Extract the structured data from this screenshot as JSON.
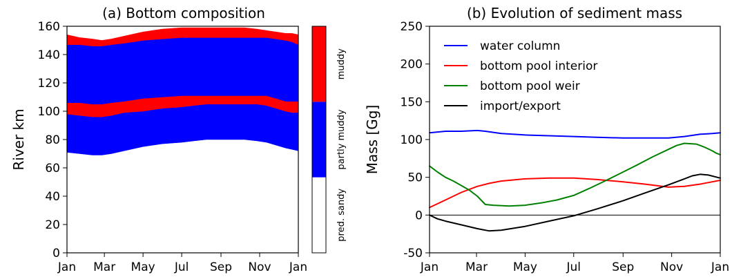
{
  "chart_data": [
    {
      "type": "area",
      "title": "(a) Bottom composition",
      "xlabel": "",
      "ylabel": "River km",
      "xlim": [
        0,
        365
      ],
      "ylim": [
        0,
        160
      ],
      "yticks": [
        0,
        20,
        40,
        60,
        80,
        100,
        120,
        140,
        160
      ],
      "xtick_labels": [
        {
          "label": "Jan",
          "x": 0
        },
        {
          "label": "Mar",
          "x": 59
        },
        {
          "label": "May",
          "x": 120
        },
        {
          "label": "Jul",
          "x": 181
        },
        {
          "label": "Sep",
          "x": 243
        },
        {
          "label": "Nov",
          "x": 304
        },
        {
          "label": "Jan",
          "x": 365
        }
      ],
      "grid": false,
      "x_days": [
        0,
        20,
        40,
        55,
        70,
        90,
        120,
        150,
        181,
        200,
        220,
        243,
        260,
        280,
        300,
        315,
        330,
        345,
        355,
        365
      ],
      "bands": [
        {
          "class": "partly muddy",
          "lower": [
            71,
            70,
            69,
            69,
            70,
            72,
            75,
            77,
            78,
            79,
            80,
            80,
            80,
            80,
            79,
            78,
            76,
            74,
            73,
            72
          ],
          "upper": [
            98,
            97,
            96,
            96,
            97,
            99,
            100,
            102,
            103,
            104,
            105,
            105,
            105,
            105,
            105,
            104,
            102,
            100,
            99,
            99
          ]
        },
        {
          "class": "muddy",
          "lower": [
            98,
            97,
            96,
            96,
            97,
            99,
            100,
            102,
            103,
            104,
            105,
            105,
            105,
            105,
            105,
            104,
            102,
            100,
            99,
            99
          ],
          "upper": [
            106,
            106,
            105,
            105,
            106,
            107,
            109,
            110,
            111,
            111,
            111,
            111,
            111,
            111,
            111,
            111,
            109,
            107,
            107,
            107
          ]
        },
        {
          "class": "partly muddy",
          "lower": [
            106,
            106,
            105,
            105,
            106,
            107,
            109,
            110,
            111,
            111,
            111,
            111,
            111,
            111,
            111,
            111,
            109,
            107,
            107,
            107
          ],
          "upper": [
            147,
            147,
            146,
            146,
            147,
            148,
            150,
            151,
            152,
            152,
            152,
            152,
            152,
            152,
            152,
            152,
            151,
            150,
            149,
            147
          ]
        },
        {
          "class": "muddy",
          "lower": [
            147,
            147,
            146,
            146,
            147,
            148,
            150,
            151,
            152,
            152,
            152,
            152,
            152,
            152,
            152,
            152,
            151,
            150,
            149,
            147
          ],
          "upper": [
            154,
            152,
            151,
            150,
            151,
            153,
            156,
            158,
            159,
            159,
            159,
            159,
            159,
            159,
            158,
            157,
            156,
            155,
            155,
            154
          ]
        }
      ],
      "colorbar": {
        "categories": [
          "pred. sandy",
          "partly muddy",
          "muddy"
        ],
        "colors": [
          "#ffffff",
          "#0000ff",
          "#ff0000"
        ]
      }
    },
    {
      "type": "line",
      "title": "(b) Evolution of sediment mass",
      "xlabel": "",
      "ylabel": "Mass [Gg]",
      "xlim": [
        0,
        365
      ],
      "ylim": [
        -50,
        250
      ],
      "yticks": [
        -50,
        0,
        50,
        100,
        150,
        200,
        250
      ],
      "xtick_labels": [
        {
          "label": "Jan",
          "x": 0
        },
        {
          "label": "Mar",
          "x": 59
        },
        {
          "label": "May",
          "x": 120
        },
        {
          "label": "Jul",
          "x": 181
        },
        {
          "label": "Sep",
          "x": 243
        },
        {
          "label": "Nov",
          "x": 304
        },
        {
          "label": "Jan",
          "x": 365
        }
      ],
      "grid": false,
      "legend": "top-left",
      "zero_line": true,
      "series": [
        {
          "name": "water column",
          "color": "#0000ff",
          "x": [
            0,
            20,
            40,
            60,
            70,
            90,
            120,
            150,
            181,
            210,
            243,
            270,
            300,
            320,
            340,
            355,
            365
          ],
          "y": [
            109,
            111,
            111,
            112,
            111,
            108,
            106,
            105,
            104,
            103,
            102,
            102,
            102,
            104,
            107,
            108,
            109
          ]
        },
        {
          "name": "bottom pool interior",
          "color": "#ff0000",
          "x": [
            0,
            20,
            40,
            60,
            75,
            90,
            120,
            150,
            181,
            210,
            243,
            270,
            300,
            320,
            340,
            355,
            365
          ],
          "y": [
            10,
            20,
            30,
            38,
            42,
            45,
            48,
            49,
            49,
            47,
            44,
            41,
            37,
            38,
            41,
            44,
            46
          ]
        },
        {
          "name": "bottom pool weir",
          "color": "#008000",
          "x": [
            0,
            10,
            20,
            30,
            50,
            60,
            70,
            80,
            100,
            120,
            140,
            160,
            181,
            200,
            220,
            243,
            260,
            280,
            300,
            310,
            320,
            335,
            345,
            355,
            360,
            365
          ],
          "y": [
            65,
            57,
            50,
            45,
            33,
            25,
            14,
            13,
            12,
            13,
            16,
            20,
            26,
            35,
            45,
            57,
            66,
            77,
            87,
            92,
            95,
            94,
            90,
            85,
            82,
            80
          ]
        },
        {
          "name": "import/export",
          "color": "#000000",
          "x": [
            0,
            10,
            20,
            40,
            60,
            75,
            90,
            120,
            150,
            181,
            210,
            243,
            270,
            300,
            320,
            330,
            340,
            350,
            365
          ],
          "y": [
            0,
            -5,
            -8,
            -13,
            -18,
            -21,
            -20,
            -15,
            -8,
            -1,
            8,
            19,
            29,
            40,
            48,
            52,
            54,
            53,
            49
          ]
        }
      ]
    }
  ]
}
